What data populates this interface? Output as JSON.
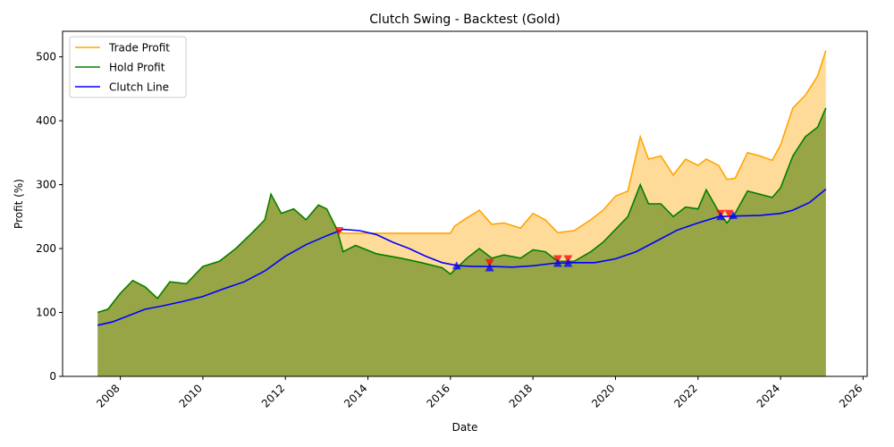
{
  "chart_data": {
    "type": "line",
    "title": "Clutch Swing - Backtest (Gold)",
    "xlabel": "Date",
    "ylabel": "Profit (%)",
    "xlim": [
      2006.6,
      2026.1
    ],
    "ylim": [
      0,
      540
    ],
    "x_ticks": [
      2008,
      2010,
      2012,
      2014,
      2016,
      2018,
      2020,
      2022,
      2024,
      2026
    ],
    "y_ticks": [
      0,
      100,
      200,
      300,
      400,
      500
    ],
    "legend_position": "top-left",
    "legend": [
      "Trade Profit",
      "Hold Profit",
      "Clutch Line"
    ],
    "colors": {
      "trade": "#ffa500",
      "hold": "#008000",
      "clutch": "#0000ff",
      "trade_fill": "#ffa500",
      "hold_fill": "#6b8e23",
      "buy_marker": "#0000ff",
      "sell_marker": "#ff0000"
    },
    "series": [
      {
        "name": "Trade Profit",
        "x": [
          2007.45,
          2007.7,
          2008.0,
          2008.3,
          2008.6,
          2008.9,
          2009.2,
          2009.6,
          2010.0,
          2010.4,
          2010.8,
          2011.2,
          2011.5,
          2011.65,
          2011.9,
          2012.2,
          2012.5,
          2012.8,
          2013.0,
          2013.25,
          2013.4,
          2014.0,
          2015.0,
          2016.0,
          2016.1,
          2016.4,
          2016.7,
          2017.0,
          2017.3,
          2017.7,
          2018.0,
          2018.3,
          2018.6,
          2019.0,
          2019.4,
          2019.7,
          2020.0,
          2020.3,
          2020.6,
          2020.8,
          2021.1,
          2021.4,
          2021.7,
          2022.0,
          2022.2,
          2022.5,
          2022.7,
          2022.9,
          2023.2,
          2023.5,
          2023.8,
          2024.0,
          2024.3,
          2024.6,
          2024.9,
          2025.1
        ],
        "values": [
          100,
          105,
          130,
          150,
          140,
          122,
          148,
          145,
          172,
          180,
          200,
          225,
          245,
          285,
          255,
          262,
          245,
          268,
          262,
          230,
          224,
          224,
          224,
          224,
          235,
          248,
          260,
          238,
          240,
          232,
          255,
          245,
          225,
          228,
          245,
          260,
          282,
          290,
          375,
          340,
          345,
          315,
          340,
          330,
          340,
          330,
          308,
          310,
          350,
          345,
          338,
          362,
          420,
          440,
          470,
          510
        ]
      },
      {
        "name": "Hold Profit",
        "x": [
          2007.45,
          2007.7,
          2008.0,
          2008.3,
          2008.6,
          2008.9,
          2009.2,
          2009.6,
          2010.0,
          2010.4,
          2010.8,
          2011.2,
          2011.5,
          2011.65,
          2011.9,
          2012.2,
          2012.5,
          2012.8,
          2013.0,
          2013.25,
          2013.4,
          2013.7,
          2014.2,
          2014.8,
          2015.3,
          2015.8,
          2016.0,
          2016.4,
          2016.7,
          2017.0,
          2017.3,
          2017.7,
          2018.0,
          2018.3,
          2018.6,
          2019.0,
          2019.4,
          2019.7,
          2020.0,
          2020.3,
          2020.6,
          2020.8,
          2021.1,
          2021.4,
          2021.7,
          2022.0,
          2022.2,
          2022.5,
          2022.7,
          2022.9,
          2023.2,
          2023.5,
          2023.8,
          2024.0,
          2024.3,
          2024.6,
          2024.9,
          2025.1
        ],
        "values": [
          100,
          105,
          130,
          150,
          140,
          122,
          148,
          145,
          172,
          180,
          200,
          225,
          245,
          285,
          255,
          262,
          245,
          268,
          262,
          230,
          195,
          205,
          192,
          185,
          178,
          170,
          160,
          185,
          200,
          185,
          190,
          185,
          198,
          195,
          180,
          180,
          195,
          210,
          230,
          250,
          300,
          270,
          270,
          250,
          265,
          262,
          292,
          258,
          240,
          255,
          290,
          285,
          280,
          295,
          345,
          375,
          390,
          420
        ]
      },
      {
        "name": "Clutch Line",
        "x": [
          2007.45,
          2007.8,
          2008.2,
          2008.6,
          2009.0,
          2009.5,
          2010.0,
          2010.5,
          2011.0,
          2011.5,
          2012.0,
          2012.5,
          2013.0,
          2013.4,
          2013.8,
          2014.2,
          2014.6,
          2015.0,
          2015.4,
          2015.8,
          2016.2,
          2016.6,
          2017.0,
          2017.5,
          2018.0,
          2018.5,
          2019.0,
          2019.5,
          2020.0,
          2020.5,
          2021.0,
          2021.5,
          2022.0,
          2022.5,
          2023.0,
          2023.5,
          2024.0,
          2024.3,
          2024.7,
          2025.1
        ],
        "values": [
          80,
          85,
          95,
          105,
          110,
          117,
          125,
          137,
          148,
          165,
          188,
          206,
          220,
          230,
          228,
          222,
          210,
          200,
          188,
          178,
          173,
          172,
          172,
          171,
          173,
          177,
          178,
          178,
          184,
          195,
          212,
          229,
          240,
          250,
          251,
          252,
          255,
          260,
          272,
          293
        ]
      }
    ],
    "markers": {
      "buy": [
        {
          "x": 2016.15,
          "y": 173
        },
        {
          "x": 2016.95,
          "y": 170
        },
        {
          "x": 2018.6,
          "y": 177
        },
        {
          "x": 2018.85,
          "y": 177
        },
        {
          "x": 2022.55,
          "y": 250
        },
        {
          "x": 2022.85,
          "y": 252
        }
      ],
      "sell": [
        {
          "x": 2013.3,
          "y": 228
        },
        {
          "x": 2016.95,
          "y": 178
        },
        {
          "x": 2018.6,
          "y": 184
        },
        {
          "x": 2018.85,
          "y": 184
        },
        {
          "x": 2022.55,
          "y": 255
        },
        {
          "x": 2022.75,
          "y": 255
        }
      ]
    }
  }
}
